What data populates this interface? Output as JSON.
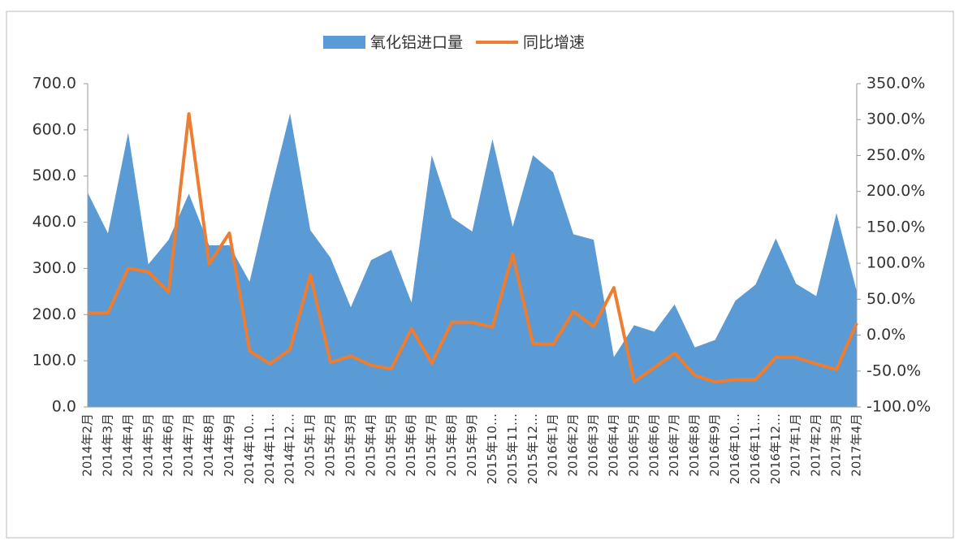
{
  "chart_data": {
    "type": "area_line",
    "categories": [
      "2014年2月",
      "2014年3月",
      "2014年4月",
      "2014年5月",
      "2014年6月",
      "2014年7月",
      "2014年8月",
      "2014年9月",
      "2014年10…",
      "2014年11…",
      "2014年12…",
      "2015年1月",
      "2015年2月",
      "2015年3月",
      "2015年4月",
      "2015年5月",
      "2015年6月",
      "2015年7月",
      "2015年8月",
      "2015年9月",
      "2015年10…",
      "2015年11…",
      "2015年12…",
      "2016年1月",
      "2016年2月",
      "2016年3月",
      "2016年4月",
      "2016年5月",
      "2016年6月",
      "2016年7月",
      "2016年8月",
      "2016年9月",
      "2016年10…",
      "2016年11…",
      "2016年12…",
      "2017年1月",
      "2017年2月",
      "2017年3月",
      "2017年4月"
    ],
    "series": [
      {
        "name": "氧化铝进口量",
        "color": "#5b9bd5",
        "type": "area",
        "values": [
          464,
          376,
          594,
          309,
          362,
          462,
          350,
          350,
          271,
          459,
          636,
          383,
          323,
          216,
          318,
          340,
          226,
          545,
          410,
          380,
          580,
          390,
          545,
          508,
          374,
          362,
          108,
          177,
          163,
          222,
          129,
          145,
          230,
          265,
          365,
          267,
          240,
          420,
          250
        ]
      },
      {
        "name": "同比增速",
        "color": "#ed7d31",
        "type": "line",
        "axis": "y2",
        "values": [
          31,
          31,
          93,
          88,
          60,
          308,
          99,
          142,
          -22,
          -40,
          -20,
          84,
          -38,
          -29,
          -42,
          -47,
          9,
          -39,
          18,
          18,
          11,
          113,
          -12,
          -13,
          33,
          12,
          66,
          -65,
          -45,
          -25,
          -56,
          -65,
          -62,
          -62,
          -31,
          -31,
          -40,
          -48,
          17
        ]
      }
    ],
    "ylim": [
      0,
      700
    ],
    "yticks": [
      {
        "value": 0,
        "label": "0.0"
      },
      {
        "value": 100,
        "label": "100.0"
      },
      {
        "value": 200,
        "label": "200.0"
      },
      {
        "value": 300,
        "label": "300.0"
      },
      {
        "value": 400,
        "label": "400.0"
      },
      {
        "value": 500,
        "label": "500.0"
      },
      {
        "value": 600,
        "label": "600.0"
      },
      {
        "value": 700,
        "label": "700.0"
      }
    ],
    "y2lim": [
      -100,
      350
    ],
    "y2ticks": [
      {
        "value": -100,
        "label": "-100.0%"
      },
      {
        "value": -50,
        "label": "-50.0%"
      },
      {
        "value": 0,
        "label": "0.0%"
      },
      {
        "value": 50,
        "label": "50.0%"
      },
      {
        "value": 100,
        "label": "100.0%"
      },
      {
        "value": 150,
        "label": "150.0%"
      },
      {
        "value": 200,
        "label": "200.0%"
      },
      {
        "value": 250,
        "label": "250.0%"
      },
      {
        "value": 300,
        "label": "300.0%"
      },
      {
        "value": 350,
        "label": "350.0%"
      }
    ],
    "legend": "top"
  }
}
